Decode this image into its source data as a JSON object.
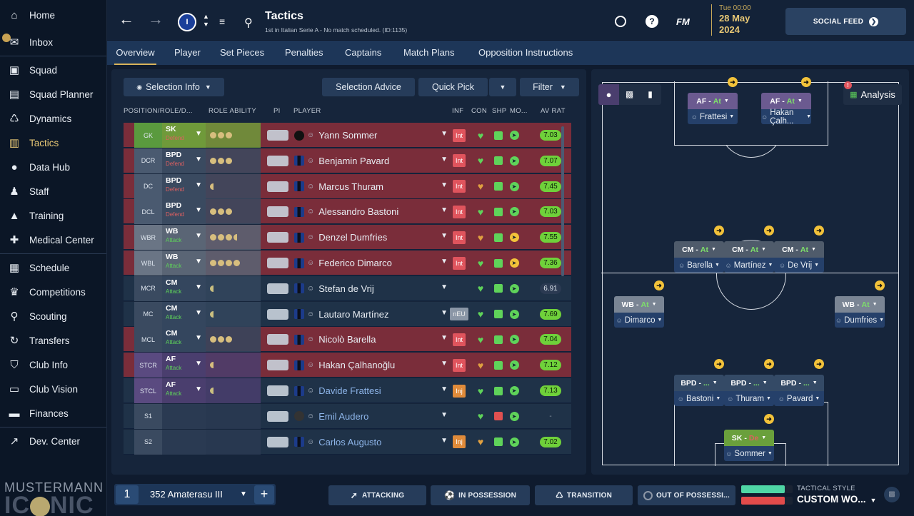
{
  "sidebar": {
    "items": [
      {
        "label": "Home",
        "icon": "home-icon"
      },
      {
        "label": "Inbox",
        "icon": "inbox-icon"
      },
      {
        "label": "Squad",
        "icon": "shirt-icon"
      },
      {
        "label": "Squad Planner",
        "icon": "clipboard-icon"
      },
      {
        "label": "Dynamics",
        "icon": "dynamics-icon"
      },
      {
        "label": "Tactics",
        "icon": "tactics-icon"
      },
      {
        "label": "Data Hub",
        "icon": "data-hub-icon"
      },
      {
        "label": "Staff",
        "icon": "staff-icon"
      },
      {
        "label": "Training",
        "icon": "training-icon"
      },
      {
        "label": "Medical Center",
        "icon": "medical-icon"
      },
      {
        "label": "Schedule",
        "icon": "calendar-icon"
      },
      {
        "label": "Competitions",
        "icon": "trophy-icon"
      },
      {
        "label": "Scouting",
        "icon": "search-icon"
      },
      {
        "label": "Transfers",
        "icon": "transfers-icon"
      },
      {
        "label": "Club Info",
        "icon": "shield-icon"
      },
      {
        "label": "Club Vision",
        "icon": "briefcase-icon"
      },
      {
        "label": "Finances",
        "icon": "money-icon"
      },
      {
        "label": "Dev. Center",
        "icon": "dev-center-icon"
      }
    ],
    "logo_top": "MUSTERMANN",
    "logo_bottom_a": "IC",
    "logo_bottom_b": "NIC"
  },
  "topbar": {
    "title": "Tactics",
    "subtitle": "1st in Italian Serie A - No match scheduled. (ID:1135)",
    "date_time": "Tue 00:00",
    "date_day": "28 May",
    "date_year": "2024",
    "fm_label": "FM",
    "social_label": "SOCIAL FEED"
  },
  "tabs": [
    "Overview",
    "Player",
    "Set Pieces",
    "Penalties",
    "Captains",
    "Match Plans",
    "Opposition Instructions"
  ],
  "panel": {
    "selection_info": "Selection Info",
    "selection_advice": "Selection Advice",
    "quick_pick": "Quick Pick",
    "filter": "Filter",
    "headers": {
      "position": "POSITION/ROLE/D...",
      "role_ability": "ROLE ABILITY",
      "pi": "PI",
      "player": "PLAYER",
      "inf": "INF",
      "con": "CON",
      "shp": "SHP",
      "mo": "MO...",
      "av_rat": "AV RAT"
    }
  },
  "rows": [
    {
      "pos": "GK",
      "role": "SK",
      "duty": "Defend",
      "ability": 3,
      "half": false,
      "name": "Yann Sommer",
      "inf": "Int",
      "av": "7.03",
      "bg": "#7a2d3a",
      "pos_bg": "#5a9a3e",
      "role_bg": "#6f9a3a",
      "duty_color": "#e06060"
    },
    {
      "pos": "DCR",
      "role": "BPD",
      "duty": "Defend",
      "ability": 3,
      "half": false,
      "name": "Benjamin Pavard",
      "inf": "Int",
      "av": "7.07",
      "bg": "#7a2d3a",
      "pos_bg": "#4a5a70",
      "role_bg": "#3a4a60",
      "duty_color": "#e06060"
    },
    {
      "pos": "DC",
      "role": "BPD",
      "duty": "Defend",
      "ability": 0,
      "half": true,
      "name": "Marcus Thuram",
      "inf": "Int",
      "av": "7.45",
      "bg": "#7a2d3a",
      "pos_bg": "#4a5a70",
      "role_bg": "#3a4a60",
      "duty_color": "#e06060"
    },
    {
      "pos": "DCL",
      "role": "BPD",
      "duty": "Defend",
      "ability": 3,
      "half": false,
      "name": "Alessandro Bastoni",
      "inf": "Int",
      "av": "7.03",
      "bg": "#7a2d3a",
      "pos_bg": "#4a5a70",
      "role_bg": "#3a4a60",
      "duty_color": "#e06060"
    },
    {
      "pos": "WBR",
      "role": "WB",
      "duty": "Attack",
      "ability": 3,
      "half": true,
      "name": "Denzel Dumfries",
      "inf": "Int",
      "av": "7.55",
      "bg": "#7a2d3a",
      "pos_bg": "#6a7585",
      "role_bg": "#5a6575",
      "duty_color": "#5fd35a"
    },
    {
      "pos": "WBL",
      "role": "WB",
      "duty": "Attack",
      "ability": 4,
      "half": false,
      "name": "Federico Dimarco",
      "inf": "Int",
      "av": "7.36",
      "bg": "#7a2d3a",
      "pos_bg": "#6a7585",
      "role_bg": "#5a6575",
      "duty_color": "#5fd35a"
    },
    {
      "pos": "MCR",
      "role": "CM",
      "duty": "Attack",
      "ability": 0,
      "half": true,
      "name": "Stefan de Vrij",
      "inf": "",
      "av": "6.91",
      "bg": "#1f3248",
      "pos_bg": "#3a4a60",
      "role_bg": "#34465e",
      "duty_color": "#5fd35a"
    },
    {
      "pos": "MC",
      "role": "CM",
      "duty": "Attack",
      "ability": 0,
      "half": true,
      "name": "Lautaro Martínez",
      "inf": "nEU",
      "av": "7.69",
      "bg": "#1f3248",
      "pos_bg": "#3a4a60",
      "role_bg": "#34465e",
      "duty_color": "#5fd35a"
    },
    {
      "pos": "MCL",
      "role": "CM",
      "duty": "Attack",
      "ability": 3,
      "half": false,
      "name": "Nicolò Barella",
      "inf": "Int",
      "av": "7.04",
      "bg": "#7a2d3a",
      "pos_bg": "#3a4a60",
      "role_bg": "#34465e",
      "duty_color": "#5fd35a"
    },
    {
      "pos": "STCR",
      "role": "AF",
      "duty": "Attack",
      "ability": 0,
      "half": true,
      "name": "Hakan Çalhanoğlu",
      "inf": "Int",
      "av": "7.12",
      "bg": "#7a2d3a",
      "pos_bg": "#5a4a80",
      "role_bg": "#4a3e6e",
      "duty_color": "#5fd35a"
    },
    {
      "pos": "STCL",
      "role": "AF",
      "duty": "Attack",
      "ability": 0,
      "half": true,
      "name": "Davide Frattesi",
      "inf": "Inj",
      "av": "7.13",
      "bg": "#1f3248",
      "pos_bg": "#5a4a80",
      "role_bg": "#4a3e6e",
      "duty_color": "#5fd35a"
    },
    {
      "pos": "S1",
      "role": "",
      "duty": "",
      "ability": 0,
      "half": false,
      "name": "Emil Audero",
      "inf": "",
      "av": "-",
      "bg": "#1f3248",
      "pos_bg": "#3a4a60",
      "role_bg": "#2a3a52",
      "duty_color": "#5fd35a"
    },
    {
      "pos": "S2",
      "role": "",
      "duty": "",
      "ability": 0,
      "half": false,
      "name": "Carlos Augusto",
      "inf": "Inj",
      "av": "7.02",
      "bg": "#1f3248",
      "pos_bg": "#3a4a60",
      "role_bg": "#2a3a52",
      "duty_color": "#5fd35a"
    }
  ],
  "pitch": {
    "analysis": "Analysis",
    "players": [
      {
        "role": "AF",
        "duty": "At",
        "name": "Frattesi",
        "color": "#6b5a90"
      },
      {
        "role": "AF",
        "duty": "At",
        "name": "Hakan Çalh...",
        "color": "#6b5a90"
      },
      {
        "role": "CM",
        "duty": "At",
        "name": "Barella",
        "color": "#4f5b6b"
      },
      {
        "role": "CM",
        "duty": "At",
        "name": "Martínez",
        "color": "#4f5b6b"
      },
      {
        "role": "CM",
        "duty": "At",
        "name": "De Vrij",
        "color": "#4f5b6b"
      },
      {
        "role": "WB",
        "duty": "At",
        "name": "Dimarco",
        "color": "#7a8594"
      },
      {
        "role": "WB",
        "duty": "At",
        "name": "Dumfries",
        "color": "#7a8594"
      },
      {
        "role": "BPD",
        "duty": "...",
        "name": "Bastoni",
        "color": "#344a66"
      },
      {
        "role": "BPD",
        "duty": "...",
        "name": "Thuram",
        "color": "#344a66"
      },
      {
        "role": "BPD",
        "duty": "...",
        "name": "Pavard",
        "color": "#344a66"
      },
      {
        "role": "SK",
        "duty": "De",
        "name": "Sommer",
        "color": "#6aa03c"
      }
    ]
  },
  "bottom": {
    "slot": "1",
    "tactic_name": "352 Amaterasu III",
    "add": "+",
    "attacking": "ATTACKING",
    "in_possession": "IN POSSESSION",
    "transition": "TRANSITION",
    "out_of_possession": "OUT OF POSSESSI...",
    "tactical_style_label": "TACTICAL STYLE",
    "tactical_style_value": "CUSTOM WO...",
    "familiarity_good": 0.85,
    "familiarity_bad": 0.85
  }
}
